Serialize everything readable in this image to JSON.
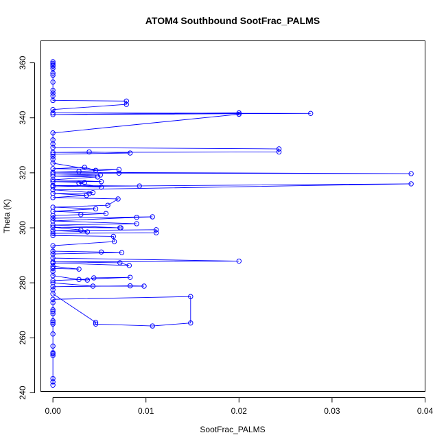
{
  "chart_data": {
    "type": "scatter",
    "title": "ATOM4 Southbound SootFrac_PALMS",
    "xlabel": "SootFrac_PALMS",
    "ylabel": "Theta (K)",
    "xlim": [
      -0.0013,
      0.04
    ],
    "ylim": [
      240.5,
      368
    ],
    "xticks": [
      0.0,
      0.01,
      0.02,
      0.03,
      0.04
    ],
    "xtick_labels": [
      "0.00",
      "0.01",
      "0.02",
      "0.03",
      "0.04"
    ],
    "yticks": [
      240,
      260,
      280,
      300,
      320,
      340,
      360
    ],
    "ytick_labels": [
      "240",
      "260",
      "280",
      "300",
      "320",
      "340",
      "360"
    ],
    "grid": false,
    "legend": "none",
    "marker": "open-circle",
    "connected": true,
    "color": "#0000ff",
    "series": [
      {
        "values": [
          [
            0.0,
            242.8
          ],
          [
            0.0,
            244.0
          ],
          [
            0.0,
            245.2
          ],
          [
            0.0,
            253.6
          ],
          [
            0.0,
            254.2
          ],
          [
            0.0,
            254.6
          ],
          [
            0.0,
            257.0
          ],
          [
            0.0,
            261.4
          ],
          [
            0.0,
            265.0
          ],
          [
            0.0,
            265.6
          ],
          [
            0.0,
            266.2
          ],
          [
            0.0,
            268.8
          ],
          [
            0.0,
            269.6
          ],
          [
            0.0,
            270.2
          ],
          [
            0.0,
            272.8
          ],
          [
            0.0,
            274.0
          ],
          [
            0.0148,
            275.0
          ],
          [
            0.0148,
            265.4
          ],
          [
            0.0107,
            264.3
          ],
          [
            0.0046,
            265.0
          ],
          [
            0.0046,
            265.6
          ],
          [
            0.0,
            276.0
          ],
          [
            0.0,
            277.5
          ],
          [
            0.0,
            278.6
          ],
          [
            0.0083,
            278.9
          ],
          [
            0.0098,
            278.8
          ],
          [
            0.0043,
            278.8
          ],
          [
            0.0,
            280.0
          ],
          [
            0.0,
            280.8
          ],
          [
            0.0083,
            282.0
          ],
          [
            0.0044,
            281.8
          ],
          [
            0.0037,
            281.0
          ],
          [
            0.0028,
            281.2
          ],
          [
            0.0,
            282.6
          ],
          [
            0.0,
            284.2
          ],
          [
            0.0,
            285.2
          ],
          [
            0.0028,
            285.0
          ],
          [
            0.0,
            286.0
          ],
          [
            0.0,
            287.2
          ],
          [
            0.0082,
            286.3
          ],
          [
            0.0072,
            287.3
          ],
          [
            0.0,
            287.6
          ],
          [
            0.02,
            287.9
          ],
          [
            0.0,
            289.0
          ],
          [
            0.0,
            290.5
          ],
          [
            0.0074,
            291.0
          ],
          [
            0.0052,
            291.2
          ],
          [
            0.0,
            291.5
          ],
          [
            0.0,
            293.5
          ],
          [
            0.0066,
            295.0
          ],
          [
            0.0065,
            296.9
          ],
          [
            0.0,
            297.2
          ],
          [
            0.0,
            298.0
          ],
          [
            0.0111,
            298.2
          ],
          [
            0.0111,
            299.3
          ],
          [
            0.0,
            299.0
          ],
          [
            0.0037,
            298.5
          ],
          [
            0.003,
            299.2
          ],
          [
            0.0,
            300.2
          ],
          [
            0.0073,
            300.0
          ],
          [
            0.0072,
            300.0
          ],
          [
            0.0,
            301.0
          ],
          [
            0.009,
            301.5
          ],
          [
            0.0,
            302.5
          ],
          [
            0.009,
            303.8
          ],
          [
            0.0107,
            304.0
          ],
          [
            0.0,
            303.5
          ],
          [
            0.0,
            304.5
          ],
          [
            0.003,
            304.8
          ],
          [
            0.0057,
            305.2
          ],
          [
            0.0,
            306.0
          ],
          [
            0.0046,
            306.9
          ],
          [
            0.0,
            307.5
          ],
          [
            0.0059,
            308.2
          ],
          [
            0.007,
            310.5
          ],
          [
            0.0,
            311.0
          ],
          [
            0.0036,
            311.8
          ],
          [
            0.0,
            312.5
          ],
          [
            0.0039,
            312.5
          ],
          [
            0.0043,
            312.8
          ],
          [
            0.0,
            313.8
          ],
          [
            0.0385,
            316.0
          ],
          [
            0.0,
            315.0
          ],
          [
            0.0093,
            315.2
          ],
          [
            0.0,
            315.4
          ],
          [
            0.0052,
            314.8
          ],
          [
            0.0028,
            316.2
          ],
          [
            0.0034,
            316.5
          ],
          [
            0.0,
            316.8
          ],
          [
            0.0052,
            316.8
          ],
          [
            0.0,
            317.5
          ],
          [
            0.0048,
            318.5
          ],
          [
            0.0,
            318.8
          ],
          [
            0.0051,
            319.2
          ],
          [
            0.0,
            319.6
          ],
          [
            0.0071,
            319.9
          ],
          [
            0.0385,
            319.7
          ],
          [
            0.0,
            320.2
          ],
          [
            0.0028,
            320.5
          ],
          [
            0.0071,
            321.2
          ],
          [
            0.0,
            321.5
          ],
          [
            0.0034,
            322.0
          ],
          [
            0.0046,
            320.9
          ],
          [
            0.0,
            323.5
          ],
          [
            0.0,
            325.0
          ],
          [
            0.0,
            326.0
          ],
          [
            0.0,
            326.8
          ],
          [
            0.0083,
            327.2
          ],
          [
            0.0039,
            327.6
          ],
          [
            0.0,
            327.4
          ],
          [
            0.0243,
            327.6
          ],
          [
            0.0243,
            328.7
          ],
          [
            0.0,
            329.2
          ],
          [
            0.0,
            330.5
          ],
          [
            0.0,
            332.0
          ],
          [
            0.0,
            334.5
          ],
          [
            0.02,
            341.3
          ],
          [
            0.02,
            341.8
          ],
          [
            0.0,
            341.2
          ],
          [
            0.0277,
            341.6
          ],
          [
            0.0,
            341.8
          ],
          [
            0.0,
            343.0
          ],
          [
            0.0079,
            344.9
          ],
          [
            0.0079,
            346.1
          ],
          [
            0.0,
            346.3
          ],
          [
            0.0,
            348.0
          ],
          [
            0.0,
            349.0
          ],
          [
            0.0,
            350.0
          ],
          [
            0.0,
            353.0
          ],
          [
            0.0,
            355.5
          ],
          [
            0.0,
            356.2
          ],
          [
            0.0,
            358.0
          ],
          [
            0.0,
            358.8
          ],
          [
            0.0,
            359.2
          ],
          [
            0.0,
            359.8
          ],
          [
            0.0,
            360.4
          ]
        ]
      }
    ]
  }
}
